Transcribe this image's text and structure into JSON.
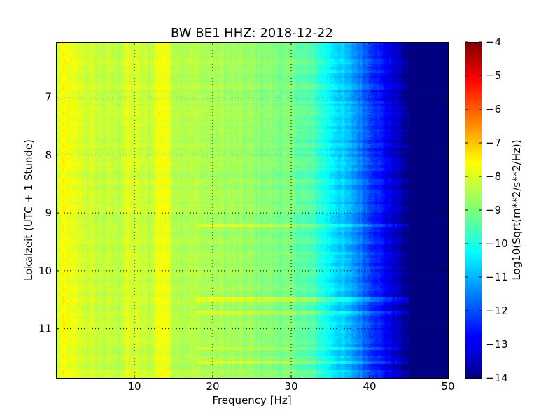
{
  "chart_data": {
    "type": "heatmap",
    "title": "BW BE1 HHZ: 2018-12-22",
    "xlabel": "Frequency [Hz]",
    "ylabel": "Lokalzeit (UTC + 1 Stunde)",
    "xlim": [
      0,
      50
    ],
    "ylim": [
      6.05,
      11.85
    ],
    "y_inverted": true,
    "grid": true,
    "x_ticks": [
      10,
      20,
      30,
      40,
      50
    ],
    "y_ticks": [
      7,
      8,
      9,
      10,
      11
    ],
    "x_tick_labels": [
      "10",
      "20",
      "30",
      "40",
      "50"
    ],
    "y_tick_labels": [
      "7",
      "8",
      "9",
      "10",
      "11"
    ],
    "colormap": "jet",
    "colorbar": {
      "label": "Log10(Sqrt(m**2/s**2/Hz))",
      "range": [
        -14,
        -4
      ],
      "ticks": [
        -4,
        -5,
        -6,
        -7,
        -8,
        -9,
        -10,
        -11,
        -12,
        -13,
        -14
      ],
      "tick_labels": [
        "−4",
        "−5",
        "−6",
        "−7",
        "−8",
        "−9",
        "−10",
        "−11",
        "−12",
        "−13",
        "−14"
      ]
    },
    "spectrum_profile": {
      "frequency_hz": [
        0,
        1,
        2,
        5,
        8,
        9,
        12,
        13,
        14,
        15,
        20,
        25,
        30,
        33,
        35,
        38,
        40,
        42,
        44,
        45,
        50
      ],
      "level": [
        -8.3,
        -7.8,
        -8.0,
        -8.3,
        -8.4,
        -8.1,
        -8.4,
        -7.9,
        -7.8,
        -8.4,
        -8.6,
        -8.8,
        -9.1,
        -9.6,
        -10.3,
        -11.2,
        -12.0,
        -12.8,
        -13.5,
        -14,
        -14
      ]
    },
    "disturbances": [
      {
        "time": 9.23,
        "delta": 0.6
      },
      {
        "time": 10.5,
        "delta": 0.5
      },
      {
        "time": 10.72,
        "delta": 0.5
      },
      {
        "time": 11.35,
        "delta": 0.5
      },
      {
        "time": 11.57,
        "delta": 0.6
      }
    ]
  }
}
